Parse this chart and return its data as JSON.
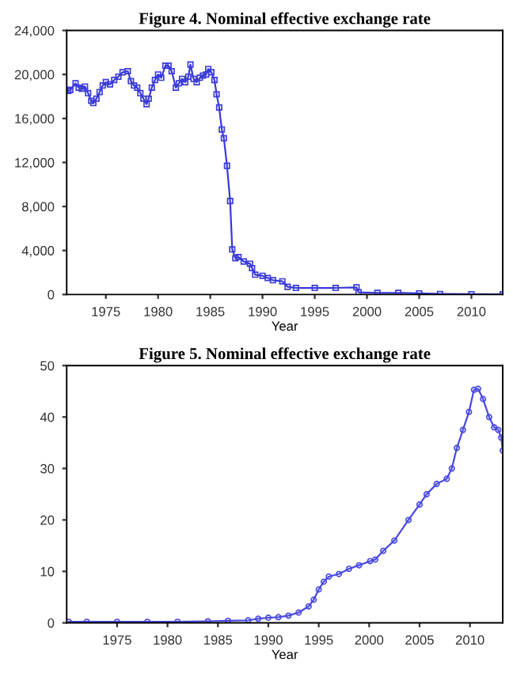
{
  "chart_data": [
    {
      "type": "line",
      "title": "Figure 4. Nominal effective exchange rate",
      "xlabel": "Year",
      "marker": "square",
      "grid": false,
      "legend": false,
      "xlim": [
        1971.25,
        2013
      ],
      "xticks": [
        1975,
        1980,
        1985,
        1990,
        1995,
        2000,
        2005,
        2010
      ],
      "ylim": [
        0,
        24000
      ],
      "yticks": [
        {
          "value": 0,
          "label": "0"
        },
        {
          "value": 4000,
          "label": "4,000"
        },
        {
          "value": 8000,
          "label": "8,000"
        },
        {
          "value": 12000,
          "label": "12,000"
        },
        {
          "value": 16000,
          "label": "16,000"
        },
        {
          "value": 20000,
          "label": "20,000"
        },
        {
          "value": 24000,
          "label": "24,000"
        }
      ],
      "series": [
        {
          "color": "#3a3ad8",
          "x": [
            1971.4,
            1971.6,
            1972.1,
            1972.4,
            1972.7,
            1973.0,
            1973.3,
            1973.6,
            1973.8,
            1974.1,
            1974.4,
            1974.7,
            1975.0,
            1975.4,
            1975.8,
            1976.2,
            1976.6,
            1977.1,
            1977.4,
            1977.7,
            1978.0,
            1978.3,
            1978.6,
            1978.9,
            1979.1,
            1979.4,
            1979.7,
            1980.0,
            1980.3,
            1980.7,
            1981.0,
            1981.3,
            1981.7,
            1982.0,
            1982.3,
            1982.6,
            1982.9,
            1983.1,
            1983.4,
            1983.7,
            1984.0,
            1984.3,
            1984.6,
            1984.8,
            1985.1,
            1985.4,
            1985.6,
            1985.85,
            1986.1,
            1986.3,
            1986.6,
            1986.9,
            1987.1,
            1987.4,
            1987.7,
            1988.2,
            1988.8,
            1989.0,
            1989.3,
            1990.0,
            1990.5,
            1991.0,
            1991.9,
            1992.4,
            1993.2,
            1995.0,
            1997.0,
            1999.0,
            1999.2,
            2001.0,
            2003.0,
            2005.0,
            2007.0,
            2010.0,
            2013.0
          ],
          "values": [
            18500,
            18600,
            19200,
            18800,
            18700,
            18900,
            18300,
            17600,
            17400,
            17800,
            18400,
            19000,
            19300,
            19100,
            19500,
            19800,
            20200,
            20300,
            19400,
            19000,
            18800,
            18300,
            17800,
            17300,
            17800,
            18800,
            19500,
            20000,
            19700,
            20800,
            20800,
            20300,
            18800,
            19200,
            19600,
            19300,
            19800,
            20900,
            19600,
            19300,
            19700,
            19900,
            20000,
            20500,
            20200,
            19500,
            18200,
            17000,
            15000,
            14200,
            11700,
            8500,
            4100,
            3300,
            3400,
            3000,
            2800,
            2400,
            1800,
            1700,
            1500,
            1300,
            1200,
            700,
            600,
            600,
            600,
            650,
            200,
            150,
            150,
            100,
            50,
            30,
            20
          ]
        }
      ]
    },
    {
      "type": "line",
      "title": "Figure 5. Nominal effective exchange rate",
      "xlabel": "Year",
      "marker": "circle",
      "grid": false,
      "legend": false,
      "xlim": [
        1970,
        2013.25
      ],
      "xticks": [
        1975,
        1980,
        1985,
        1990,
        1995,
        2000,
        2005,
        2010
      ],
      "ylim": [
        0,
        50
      ],
      "yticks": [
        0,
        10,
        20,
        30,
        40,
        50
      ],
      "series": [
        {
          "color": "#4a4ae0",
          "x": [
            1970.2,
            1972,
            1975,
            1978,
            1981,
            1984,
            1986,
            1988,
            1989,
            1990,
            1991,
            1992,
            1993,
            1994,
            1994.5,
            1995,
            1995.5,
            1996,
            1997,
            1998,
            1999,
            2000.1,
            2000.6,
            2001.4,
            2002.5,
            2003.9,
            2005,
            2005.7,
            2006.7,
            2007.7,
            2008.2,
            2008.7,
            2009.3,
            2009.9,
            2010.4,
            2010.8,
            2011.3,
            2011.9,
            2012.4,
            2012.8,
            2013.1,
            2013.25
          ],
          "values": [
            0.2,
            0.2,
            0.2,
            0.2,
            0.2,
            0.3,
            0.4,
            0.5,
            0.8,
            1,
            1.1,
            1.4,
            2,
            3.2,
            4.5,
            6.5,
            8,
            9,
            9.5,
            10.5,
            11.2,
            12,
            12.3,
            14,
            16,
            20,
            23,
            25,
            27,
            28,
            30,
            34,
            37.5,
            41,
            45.3,
            45.5,
            43.5,
            40,
            38,
            37.5,
            36,
            33.5
          ]
        }
      ]
    }
  ]
}
